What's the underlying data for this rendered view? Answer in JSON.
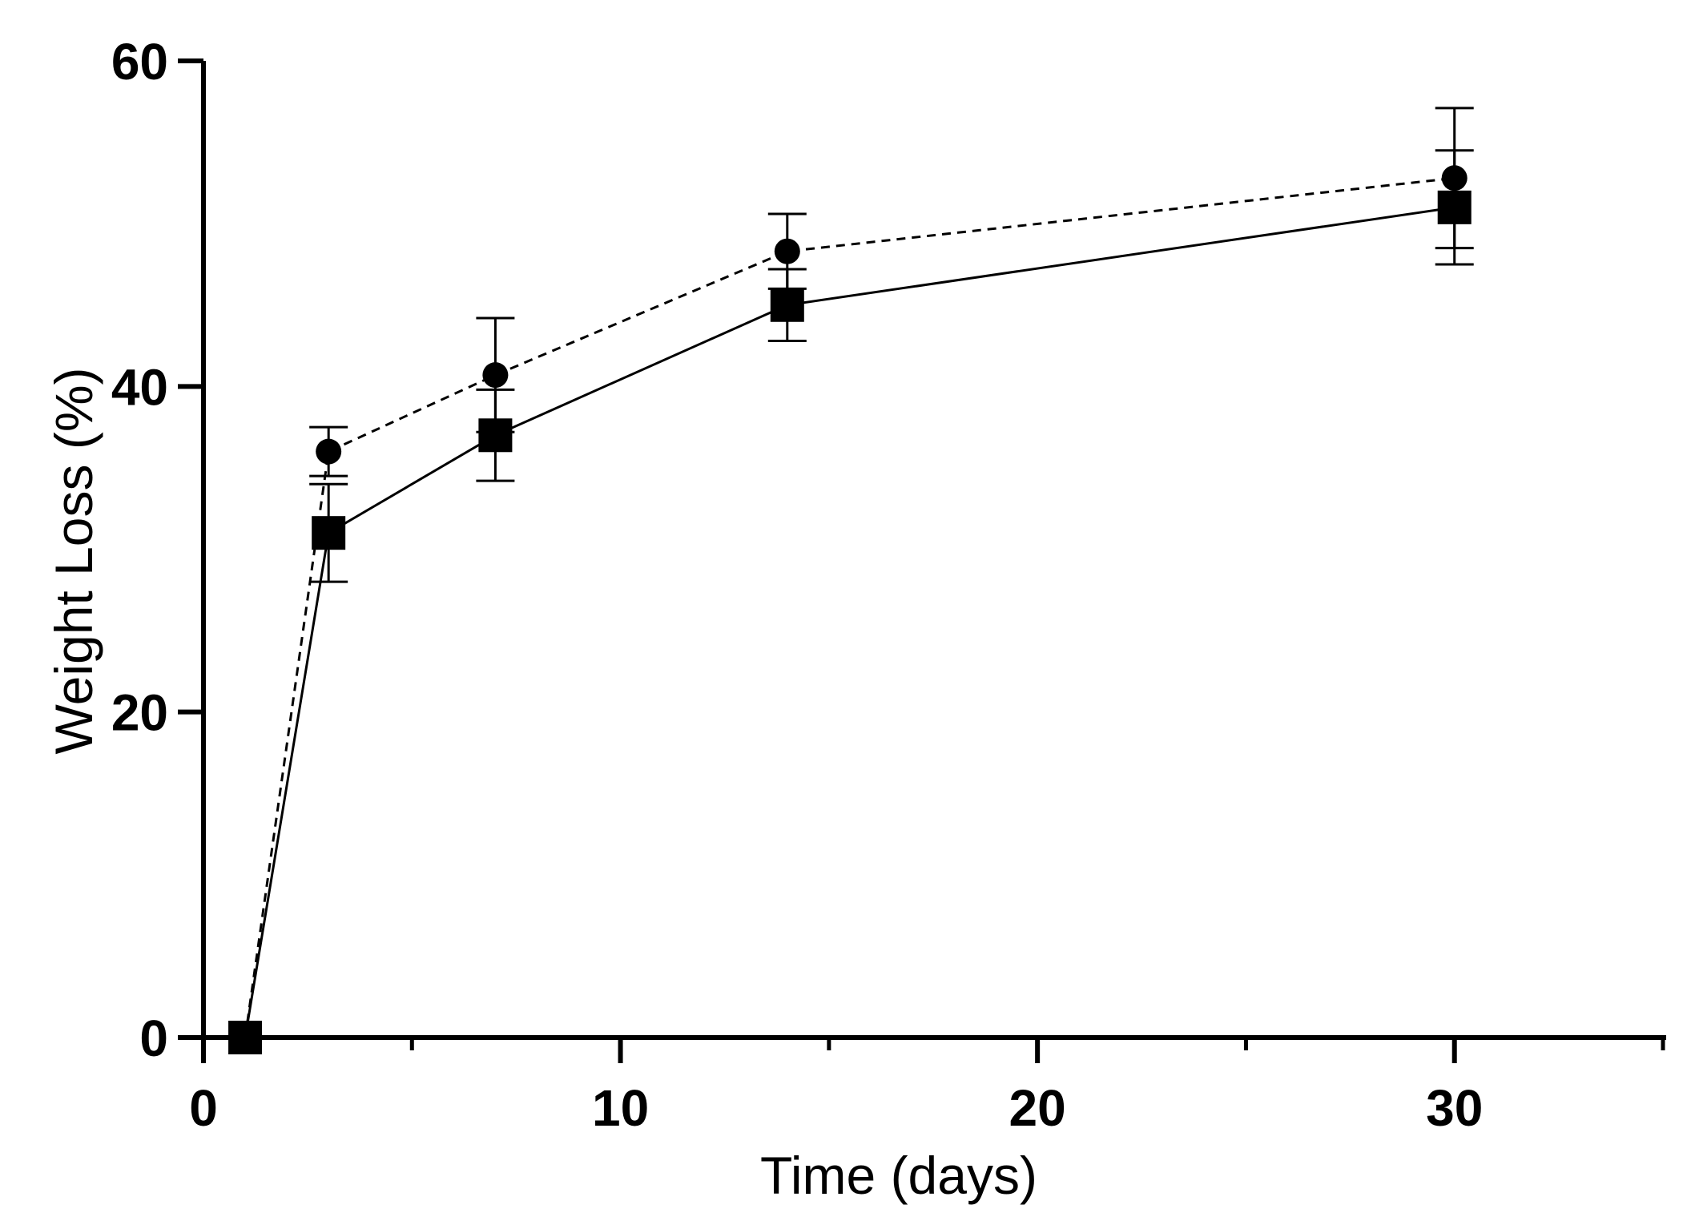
{
  "chart_data": {
    "type": "line",
    "title": "",
    "xlabel": "Time (days)",
    "ylabel": "Weight Loss (%)",
    "xlim": [
      0,
      35
    ],
    "ylim": [
      0,
      60
    ],
    "x_ticks": [
      0,
      10,
      20,
      30
    ],
    "x_tick_labels": [
      "0",
      "10",
      "20",
      "30"
    ],
    "x_minor_ticks": [
      5,
      15,
      25,
      35
    ],
    "y_ticks": [
      0,
      20,
      40,
      60
    ],
    "y_tick_labels": [
      "0",
      "20",
      "40",
      "60"
    ],
    "grid": false,
    "legend": "none",
    "series": [
      {
        "name": "circle-dashed",
        "marker": "circle",
        "line_style": "dashed",
        "color": "#000000",
        "points": [
          {
            "x": 1,
            "y": 0,
            "err": 0
          },
          {
            "x": 3,
            "y": 36,
            "err": 1.5
          },
          {
            "x": 7,
            "y": 40.7,
            "err": 3.5
          },
          {
            "x": 14,
            "y": 48.3,
            "err": 2.3
          },
          {
            "x": 30,
            "y": 52.8,
            "err": 4.3
          }
        ]
      },
      {
        "name": "square-solid",
        "marker": "square",
        "line_style": "solid",
        "color": "#000000",
        "points": [
          {
            "x": 1,
            "y": 0,
            "err": 0
          },
          {
            "x": 3,
            "y": 31,
            "err": 3
          },
          {
            "x": 7,
            "y": 37,
            "err": 2.8
          },
          {
            "x": 14,
            "y": 45,
            "err": 2.2
          },
          {
            "x": 30,
            "y": 51,
            "err": 3.5
          }
        ]
      }
    ]
  }
}
